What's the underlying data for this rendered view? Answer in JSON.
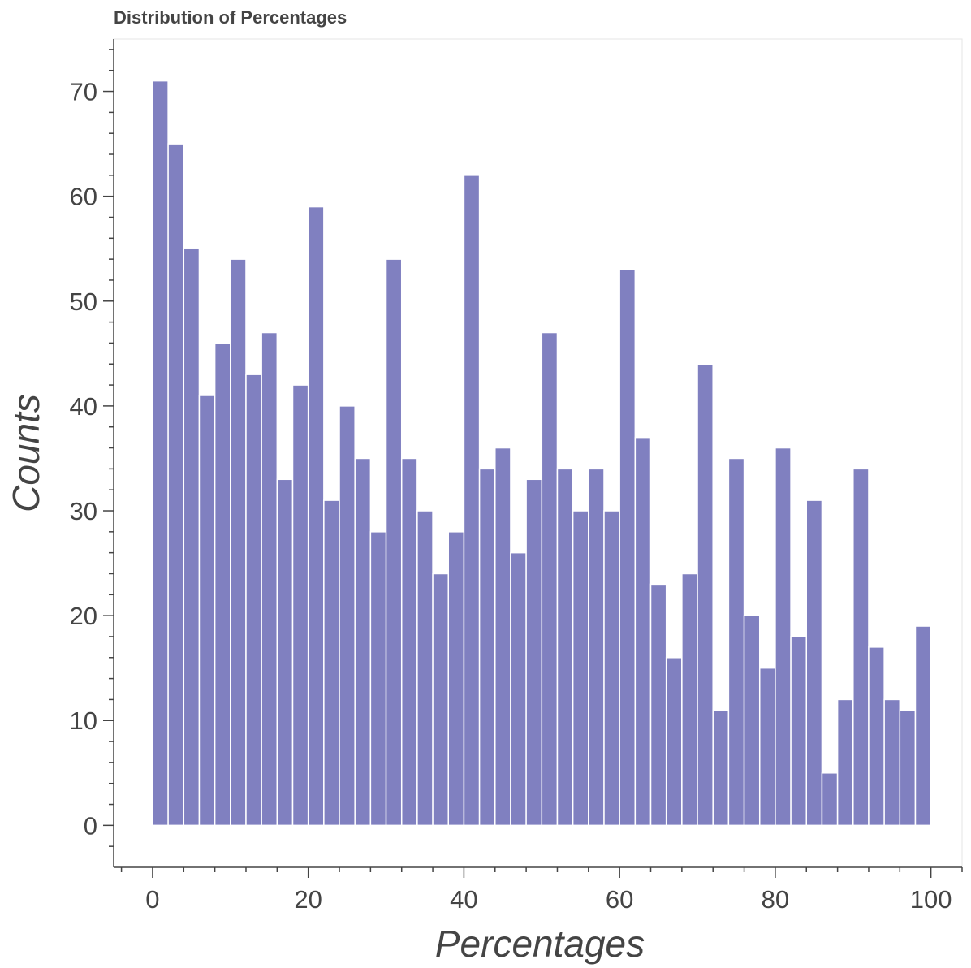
{
  "chart_data": {
    "type": "bar",
    "title": "Distribution of Percentages",
    "xlabel": "Percentages",
    "ylabel": "Counts",
    "bin_width": 2,
    "x_start": 0,
    "values": [
      71,
      65,
      55,
      41,
      46,
      54,
      43,
      47,
      33,
      42,
      59,
      31,
      40,
      35,
      28,
      54,
      35,
      30,
      24,
      28,
      62,
      34,
      36,
      26,
      33,
      47,
      34,
      30,
      34,
      30,
      53,
      37,
      23,
      16,
      24,
      44,
      11,
      35,
      20,
      15,
      36,
      18,
      31,
      5,
      12,
      34,
      17,
      12,
      11,
      19
    ],
    "xlim": [
      -5,
      104
    ],
    "ylim": [
      -4,
      75
    ],
    "x_ticks": [
      0,
      20,
      40,
      60,
      80,
      100
    ],
    "y_ticks": [
      0,
      10,
      20,
      30,
      40,
      50,
      60,
      70
    ],
    "bar_color": "#8080c0",
    "bar_edge_color": "#ffffff",
    "grid": false
  }
}
